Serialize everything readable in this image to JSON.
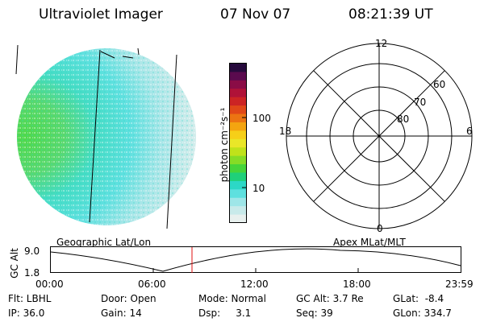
{
  "header": {
    "title": "Ultraviolet Imager",
    "date": "07 Nov 07",
    "time": "08:21:39 UT"
  },
  "colorbar": {
    "unit_label": "photon cm⁻²s⁻¹",
    "ticks": [
      "100",
      "10"
    ],
    "colors": [
      "#e8f0ee",
      "#c8eaea",
      "#9ee6e8",
      "#5ee0df",
      "#2cd8c6",
      "#1fd07a",
      "#46d43a",
      "#86dc26",
      "#c0e21a",
      "#eae628",
      "#f6cf18",
      "#f4a410",
      "#ec7412",
      "#e04818",
      "#cc2424",
      "#b01238",
      "#8a0c46",
      "#5a0a4e",
      "#260a3c"
    ]
  },
  "polar_grid": {
    "mlt_labels": {
      "top": "12",
      "left": "18",
      "right": "6",
      "bottom": "0"
    },
    "lat_labels": [
      "60",
      "70",
      "80"
    ]
  },
  "timeline": {
    "left_title": "Geographic Lat/Lon",
    "right_title": "Apex MLat/MLT",
    "ylabel": "GC Alt",
    "ymax_label": "9.0",
    "ymin_label": "1.8",
    "xticks": [
      "00:00",
      "06:00",
      "12:00",
      "18:00",
      "23:59"
    ]
  },
  "info": {
    "flt": "Flt: LBHL",
    "door": "Door: Open",
    "mode": "Mode: Normal",
    "gc_alt": "GC Alt: 3.7 Re",
    "glat": "GLat:  -8.4",
    "ip": "IP: 36.0",
    "gain": "Gain: 14",
    "dsp": "Dsp:     3.1",
    "seq": "Seq: 39",
    "glon": "GLon: 334.7"
  }
}
